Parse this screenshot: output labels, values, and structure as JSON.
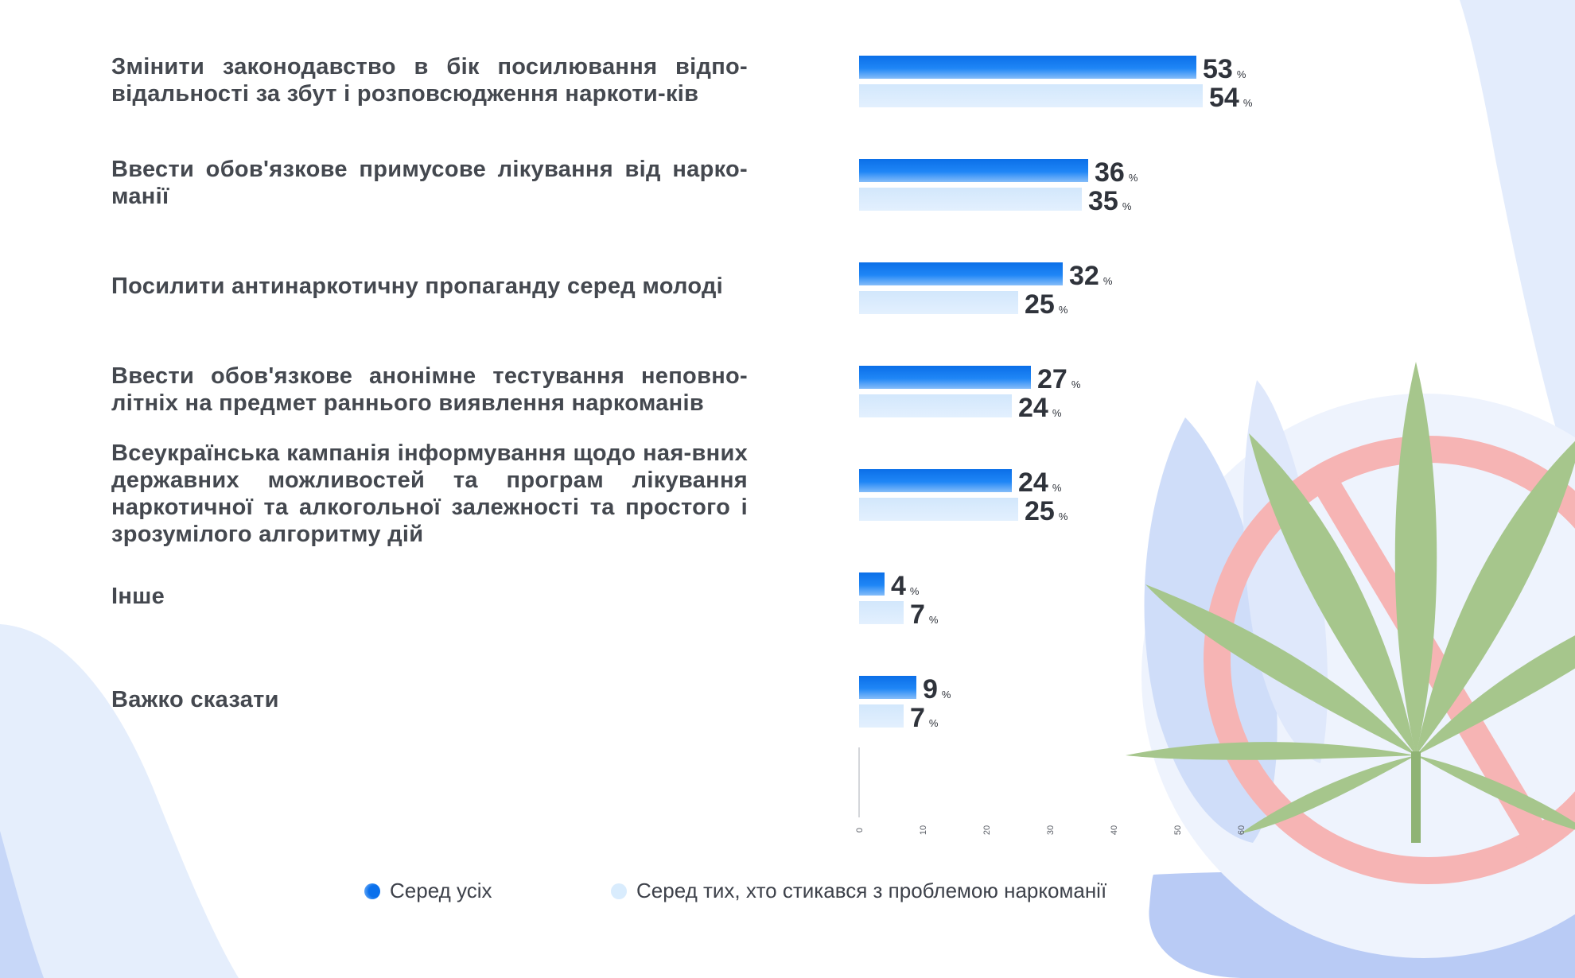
{
  "chart_data": {
    "type": "bar",
    "orientation": "horizontal",
    "categories": [
      "Змінити законодавство в бік посилювання відпо-відальності за збут і розповсюдження наркоти-ків",
      "Ввести обов'язкове примусове лікування від нарко-манії",
      "Посилити антинаркотичну пропаганду серед молоді",
      "Ввести обов'язкове анонімне тестування неповно-літніх на предмет раннього виявлення наркоманів",
      "Всеукраїнська кампанія інформування щодо ная-вних державних можливостей та програм лікування наркотичної та алкогольної залежності та простого і зрозумілого алгоритму дій",
      "Інше",
      "Важко сказати"
    ],
    "series": [
      {
        "name": "Серед усіх",
        "values": [
          53,
          36,
          32,
          27,
          24,
          4,
          9
        ],
        "color": "#1a7ff2"
      },
      {
        "name": "Серед тих, хто стикався з проблемою наркоманії",
        "values": [
          54,
          35,
          25,
          24,
          25,
          7,
          7
        ],
        "color": "#d9ecfd"
      }
    ],
    "value_suffix": "%",
    "xlim": [
      0,
      60
    ],
    "xticks": [
      "0",
      "10",
      "20",
      "30",
      "40",
      "50",
      "60"
    ],
    "grid": false,
    "legend_position": "bottom"
  },
  "legend": {
    "item1": "Серед усіх",
    "item2": "Серед тих, хто стикався з проблемою наркоманії"
  },
  "decor": {
    "illustration": "cannabis-leaf-prohibited-icon",
    "colors": {
      "blob": "#dde8fb",
      "blob_dark": "#b7cbf6",
      "prohibit": "#f6b3b3",
      "leaf": "#a6c68c",
      "leaf_vein": "#8fb374"
    }
  }
}
